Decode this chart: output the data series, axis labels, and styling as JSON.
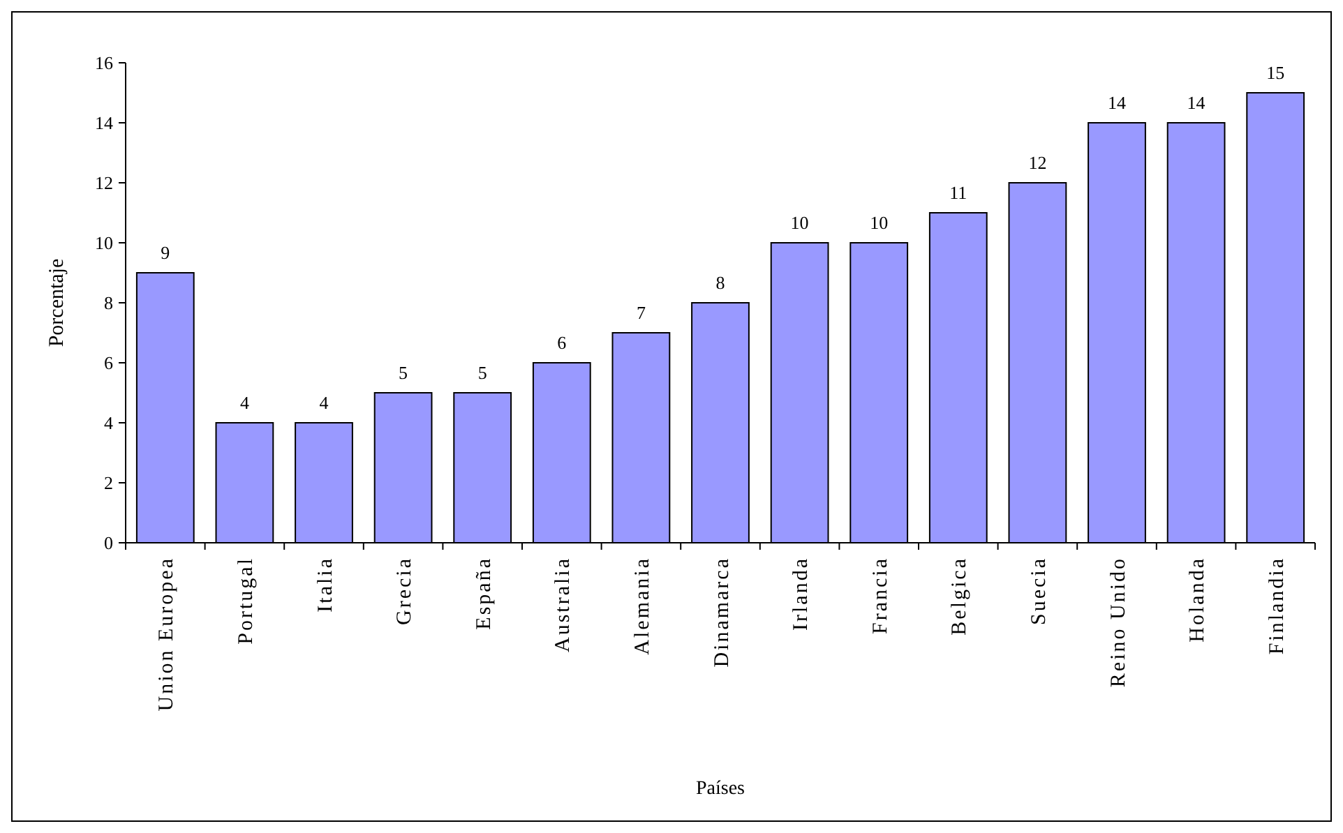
{
  "chart_data": {
    "type": "bar",
    "xlabel": "Países",
    "ylabel": "Porcentaje",
    "categories": [
      "Union Europea",
      "Portugal",
      "Italia",
      "Grecia",
      "España",
      "Australia",
      "Alemania",
      "Dinamarca",
      "Irlanda",
      "Francia",
      "Belgica",
      "Suecia",
      "Reino Unido",
      "Holanda",
      "Finlandia"
    ],
    "values": [
      9,
      4,
      4,
      5,
      5,
      6,
      7,
      8,
      10,
      10,
      11,
      12,
      14,
      14,
      15
    ],
    "color": "#9999ff",
    "ylim": [
      0,
      16
    ],
    "yticks": [
      0,
      2,
      4,
      6,
      8,
      10,
      12,
      14,
      16
    ],
    "data_labels": true,
    "grid": false
  }
}
